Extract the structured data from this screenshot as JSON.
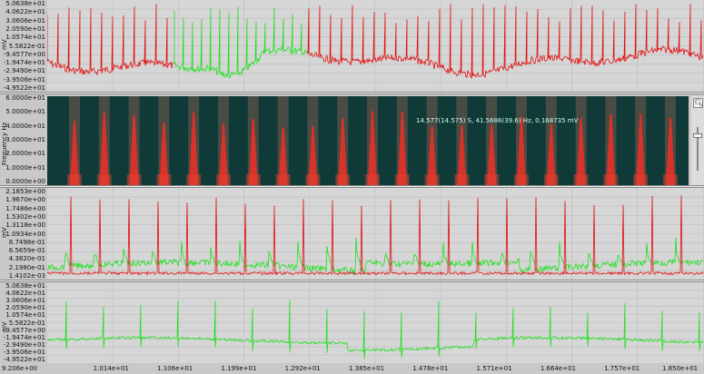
{
  "panel1": {
    "unit": "mV",
    "ticks": [
      "5.0638e+01",
      "4.0622e+01",
      "3.0606e+01",
      "2.0590e+01",
      "1.0574e+01",
      "5.5822e-01",
      "-9.4577e+00",
      "-1.9474e+01",
      "-2.9490e+01",
      "-3.9506e+01",
      "-4.9522e+01"
    ]
  },
  "panel2": {
    "unit": "Frequency Hz",
    "ticks": [
      "6.0000e+01",
      "5.0000e+01",
      "4.0000e+01",
      "3.0000e+01",
      "2.0000e+01",
      "1.0000e+01",
      "0.0000e+00"
    ],
    "tooltip": "14.577(14.575) S, 41.5686(39.6) Hz, 0.168735 mV"
  },
  "panel3": {
    "unit": "mV",
    "ticks": [
      "2.1853e+00",
      "1.9670e+00",
      "1.7486e+00",
      "1.5302e+00",
      "1.3118e+00",
      "1.0934e+00",
      "8.7498e-01",
      "6.5659e-01",
      "4.3820e-01",
      "2.1980e-01",
      "1.4102e-03"
    ]
  },
  "panel4": {
    "unit": "mV",
    "ticks": [
      "5.0638e+01",
      "4.0622e+01",
      "3.0606e+01",
      "2.0590e+01",
      "1.0574e+01",
      "5.5822e-01",
      "-9.4577e+00",
      "-1.9474e+01",
      "-2.9490e+01",
      "-3.9506e+01",
      "-4.9522e+01"
    ]
  },
  "xaxis": {
    "ticks": [
      "9.206e+00",
      "1.014e+01",
      "1.106e+01",
      "1.199e+01",
      "1.292e+01",
      "1.385e+01",
      "1.478e+01",
      "1.571e+01",
      "1.664e+01",
      "1.757e+01",
      "1.850e+01"
    ]
  },
  "colors": {
    "red": "#e01010",
    "green": "#1ee01e",
    "spectrogram_bg": "#0f3a38",
    "spectrogram_band": "#7a5a50"
  },
  "icons": {
    "zoom": "magnifier-icon",
    "slider": "vertical-slider"
  }
}
